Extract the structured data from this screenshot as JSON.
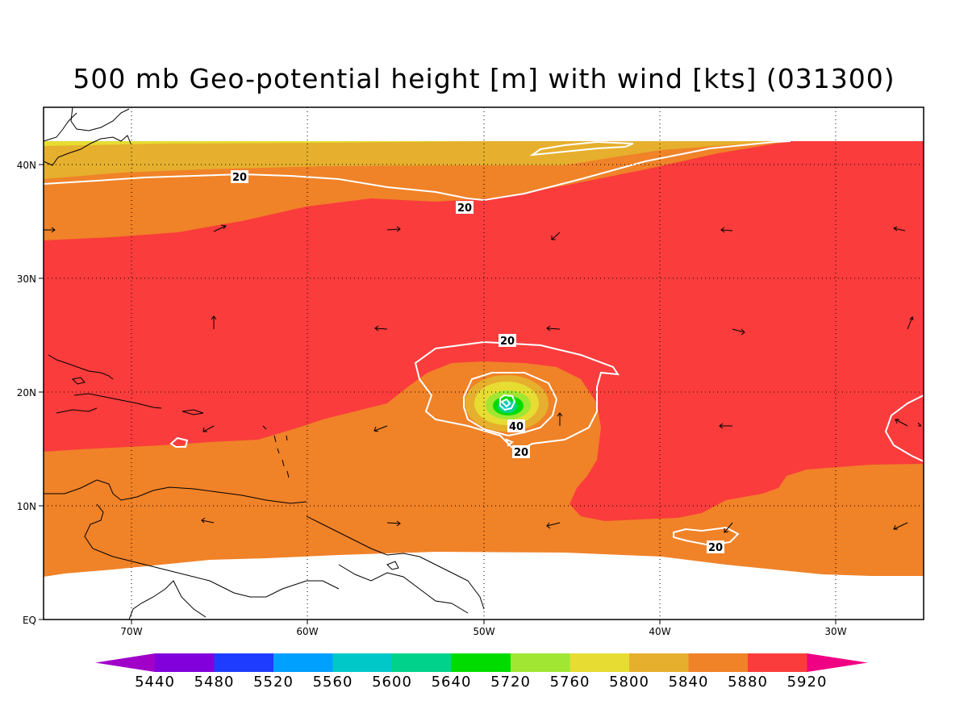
{
  "title": "500 mb Geo-potential height [m] with wind [kts] (031300)",
  "axes": {
    "lon_labels": [
      "70W",
      "60W",
      "50W",
      "40W",
      "30W"
    ],
    "lat_labels": [
      "40N",
      "30N",
      "20N",
      "10N",
      "EQ"
    ]
  },
  "colorbar": {
    "labels": [
      "5440",
      "5480",
      "5520",
      "5560",
      "5600",
      "5640",
      "5720",
      "5760",
      "5800",
      "5840",
      "5880",
      "5920"
    ],
    "colors": [
      "#a000c8",
      "#8200dc",
      "#1e3cff",
      "#00a0ff",
      "#00c8c8",
      "#00d28c",
      "#00dc00",
      "#a0e632",
      "#e6dc32",
      "#e6af2d",
      "#f08228",
      "#fa3c3c",
      "#f00082"
    ]
  },
  "contour_labels": {
    "north_left": "20",
    "north_mid": "20",
    "storm_top": "20",
    "storm_inner": "40",
    "storm_bottom": "20",
    "southeast": "20"
  }
}
